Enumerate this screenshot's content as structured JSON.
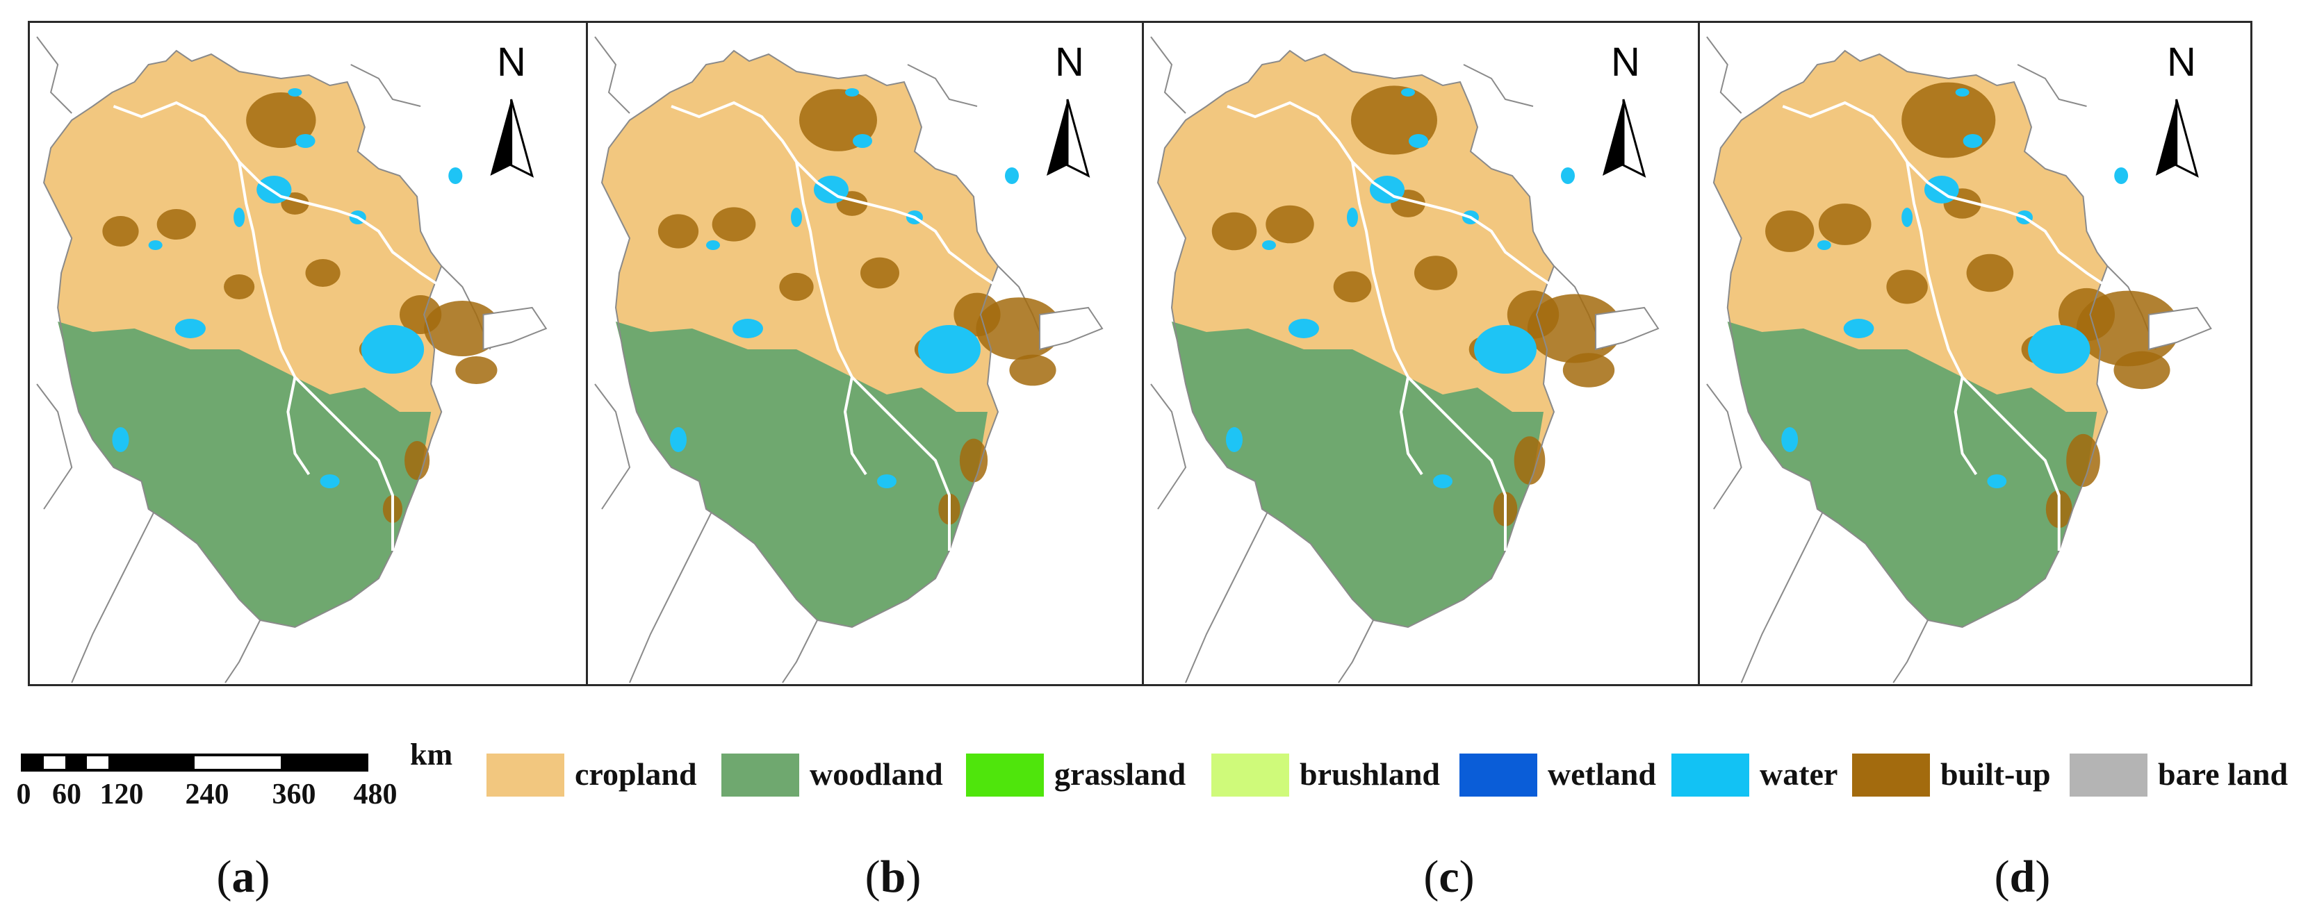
{
  "panels": [
    {
      "id": "a",
      "label_open": "(",
      "label_letter": "a",
      "label_close": ")",
      "north": "N"
    },
    {
      "id": "b",
      "label_open": "(",
      "label_letter": "b",
      "label_close": ")",
      "north": "N"
    },
    {
      "id": "c",
      "label_open": "(",
      "label_letter": "c",
      "label_close": ")",
      "north": "N"
    },
    {
      "id": "d",
      "label_open": "(",
      "label_letter": "d",
      "label_close": ")",
      "north": "N"
    }
  ],
  "scale_bar": {
    "unit": "km",
    "ticks": [
      "0",
      "60",
      "120",
      "240",
      "360",
      "480"
    ]
  },
  "legend": [
    {
      "label": "cropland",
      "color": "#F2C77F"
    },
    {
      "label": "woodland",
      "color": "#6FA86F"
    },
    {
      "label": "grassland",
      "color": "#4FE50C"
    },
    {
      "label": "brushland",
      "color": "#CFFA7A"
    },
    {
      "label": "wetland",
      "color": "#0A5DD8"
    },
    {
      "label": "water",
      "color": "#12C2F4"
    },
    {
      "label": "built-up",
      "color": "#A36B0E"
    },
    {
      "label": "bare land",
      "color": "#B4B4B4"
    }
  ],
  "map_colors": {
    "cropland": "#F2C77F",
    "woodland": "#6FA86F",
    "water": "#1EC4F5",
    "built_up": "#A36B0E",
    "boundary_white": "#FFFFFF",
    "outline_gray": "#8A8A8A"
  }
}
